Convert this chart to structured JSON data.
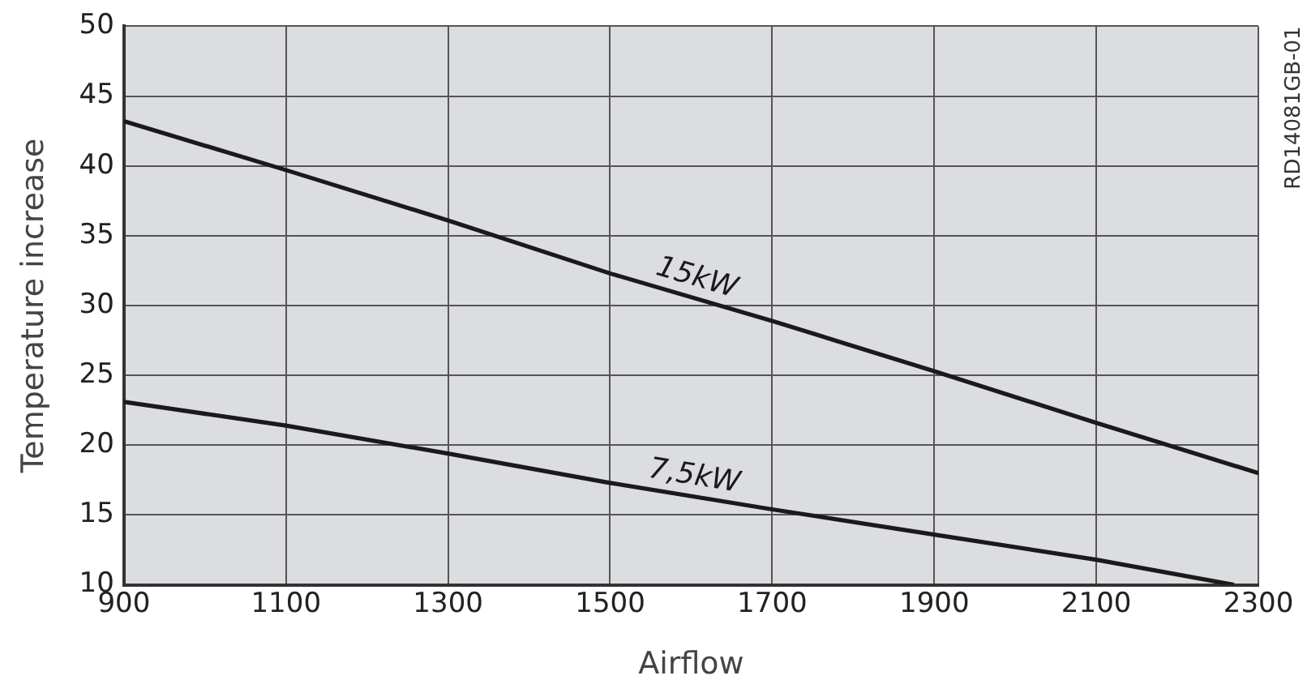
{
  "chart_data": {
    "type": "line",
    "xlabel": "Airflow",
    "ylabel": "Temperature increase",
    "xlim": [
      900,
      2300
    ],
    "xticks": [
      900,
      1100,
      1300,
      1500,
      1700,
      1900,
      2100,
      2300
    ],
    "ylim": [
      10,
      50
    ],
    "yticks": [
      10,
      15,
      20,
      25,
      30,
      35,
      40,
      45,
      50
    ],
    "grid": true,
    "legend": false,
    "marker": "none",
    "line_style": "solid",
    "annotations": [
      "RD14081GB-01"
    ],
    "series": [
      {
        "name": "15kW",
        "color": "#1a1a1a",
        "x": [
          900,
          1100,
          1300,
          1500,
          1700,
          1900,
          2100,
          2300
        ],
        "values": [
          43.2,
          39.7,
          36.1,
          32.3,
          28.9,
          25.3,
          21.6,
          18.0
        ]
      },
      {
        "name": "7,5kW",
        "color": "#1a1a1a",
        "x": [
          900,
          1100,
          1300,
          1500,
          1700,
          1900,
          2100,
          2270
        ],
        "values": [
          23.1,
          21.4,
          19.4,
          17.3,
          15.4,
          13.6,
          11.8,
          10
        ]
      }
    ]
  }
}
